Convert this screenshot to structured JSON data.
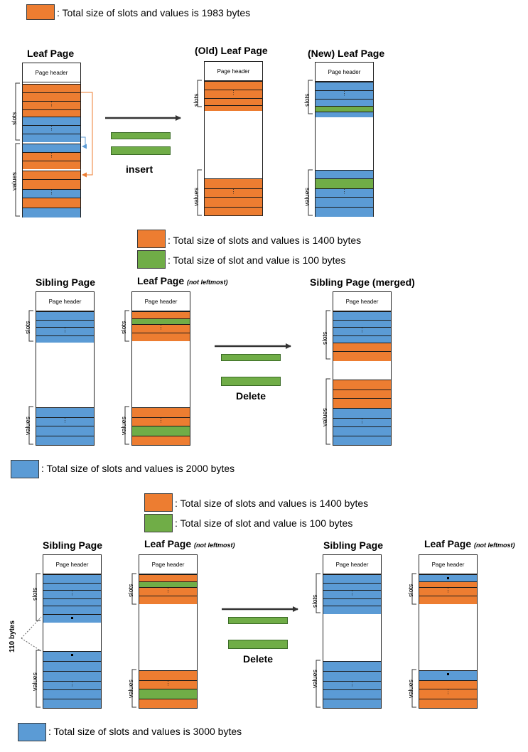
{
  "section1": {
    "legend_orange": ": Total size of slots and values is 1983 bytes",
    "title_leaf": "Leaf Page",
    "title_old": "(Old) Leaf Page",
    "title_new": "(New) Leaf Page",
    "action": "insert"
  },
  "section2": {
    "legend_orange": ": Total size of slots and values is 1400 bytes",
    "legend_green": ": Total size of slot and value is 100 bytes",
    "title_sibling": "Sibling Page",
    "title_leaf": "Leaf Page",
    "title_leaf_note": "(not leftmost)",
    "title_merged": "Sibling Page (merged)",
    "action": "Delete",
    "legend_blue": ": Total size of slots and values is 2000 bytes"
  },
  "section3": {
    "legend_orange": ": Total size of slots and values is 1400 bytes",
    "legend_green": ": Total size of slot and value is 100 bytes",
    "title_sibling": "Sibling Page",
    "title_leaf": "Leaf Page",
    "title_leaf_note": "(not leftmost)",
    "title_sibling_after": "Sibling Page",
    "title_leaf_after": "Leaf Page",
    "title_leaf_after_note": "(not leftmost)",
    "side_label": "110 bytes",
    "action": "Delete",
    "legend_blue": ": Total size of slots and values is 3000 bytes"
  },
  "common": {
    "page_header": "Page header",
    "slots": "slots",
    "values": "values",
    "ellipsis": "⋮"
  },
  "colors": {
    "orange": "#ed7d31",
    "blue": "#5b9bd5",
    "green": "#70ad47"
  }
}
